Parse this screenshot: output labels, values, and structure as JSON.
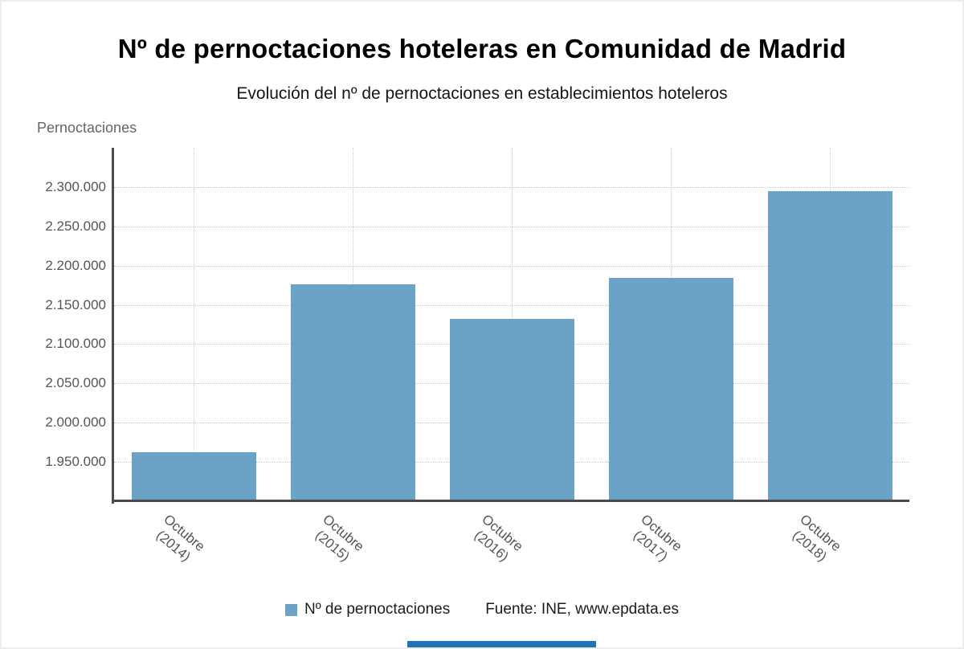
{
  "header": {
    "title": "Nº de pernoctaciones hoteleras en Comunidad de Madrid",
    "subtitle": "Evolución del nº de pernoctaciones en establecimientos hoteleros"
  },
  "axis": {
    "y_title": "Pernoctaciones"
  },
  "legend": {
    "series_label": "Nº de pernoctaciones",
    "source": "Fuente: INE, www.epdata.es"
  },
  "colors": {
    "bar": "#6ba3c7",
    "axis": "#4a4a4a",
    "grid": "#c8c8c8",
    "accent_strip": "#2273b8"
  },
  "chart_data": {
    "type": "bar",
    "title": "Nº de pernoctaciones hoteleras en Comunidad de Madrid",
    "subtitle": "Evolución del nº de pernoctaciones en establecimientos hoteleros",
    "xlabel": "",
    "ylabel": "Pernoctaciones",
    "categories": [
      "Octubre (2014)",
      "Octubre (2015)",
      "Octubre (2016)",
      "Octubre (2017)",
      "Octubre (2018)"
    ],
    "values": [
      1962000,
      2176000,
      2132000,
      2184000,
      2295000
    ],
    "ylim": [
      1900000,
      2350000
    ],
    "yticks": [
      {
        "value": 1950000,
        "label": "1.950.000"
      },
      {
        "value": 2000000,
        "label": "2.000.000"
      },
      {
        "value": 2050000,
        "label": "2.050.000"
      },
      {
        "value": 2100000,
        "label": "2.100.000"
      },
      {
        "value": 2150000,
        "label": "2.150.000"
      },
      {
        "value": 2200000,
        "label": "2.200.000"
      },
      {
        "value": 2250000,
        "label": "2.250.000"
      },
      {
        "value": 2300000,
        "label": "2.300.000"
      }
    ],
    "grid": true,
    "legend_position": "bottom",
    "series_name": "Nº de pernoctaciones",
    "source": "Fuente: INE, www.epdata.es"
  }
}
